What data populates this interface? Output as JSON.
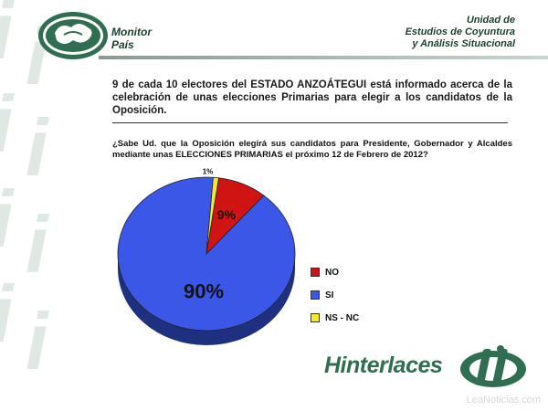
{
  "header": {
    "logo_text": [
      "Monitor",
      "País"
    ],
    "unit_lines": [
      "Unidad de",
      "Estudios de Coyuntura",
      "y Análisis Situacional"
    ]
  },
  "headline": "9 de cada 10 electores del ESTADO ANZOÁTEGUI está informado acerca de la celebración de unas elecciones Primarias para elegir a los candidatos de la Oposición.",
  "question": "¿Sabe Ud. que la Oposición elegirá sus candidatos para Presidente, Gobernador y Alcaldes mediante unas ELECCIONES PRIMARIAS el próximo 12 de Febrero de 2012?",
  "chart_data": {
    "type": "pie",
    "title": "",
    "slices": [
      {
        "label": "NO",
        "value": 9,
        "display": "9%",
        "color": "#d01414"
      },
      {
        "label": "SI",
        "value": 90,
        "display": "90%",
        "color": "#3b57e8"
      },
      {
        "label": "NS - NC",
        "value": 1,
        "display": "1%",
        "color": "#f3ec2a"
      }
    ],
    "legend_placement": "right"
  },
  "brand": "Hinterlaces",
  "source": "LeaNoticias.com",
  "colors": {
    "brand_green": "#2f6e50",
    "dark_green": "#1c3f2c",
    "watermark": "#dfe8e3"
  }
}
